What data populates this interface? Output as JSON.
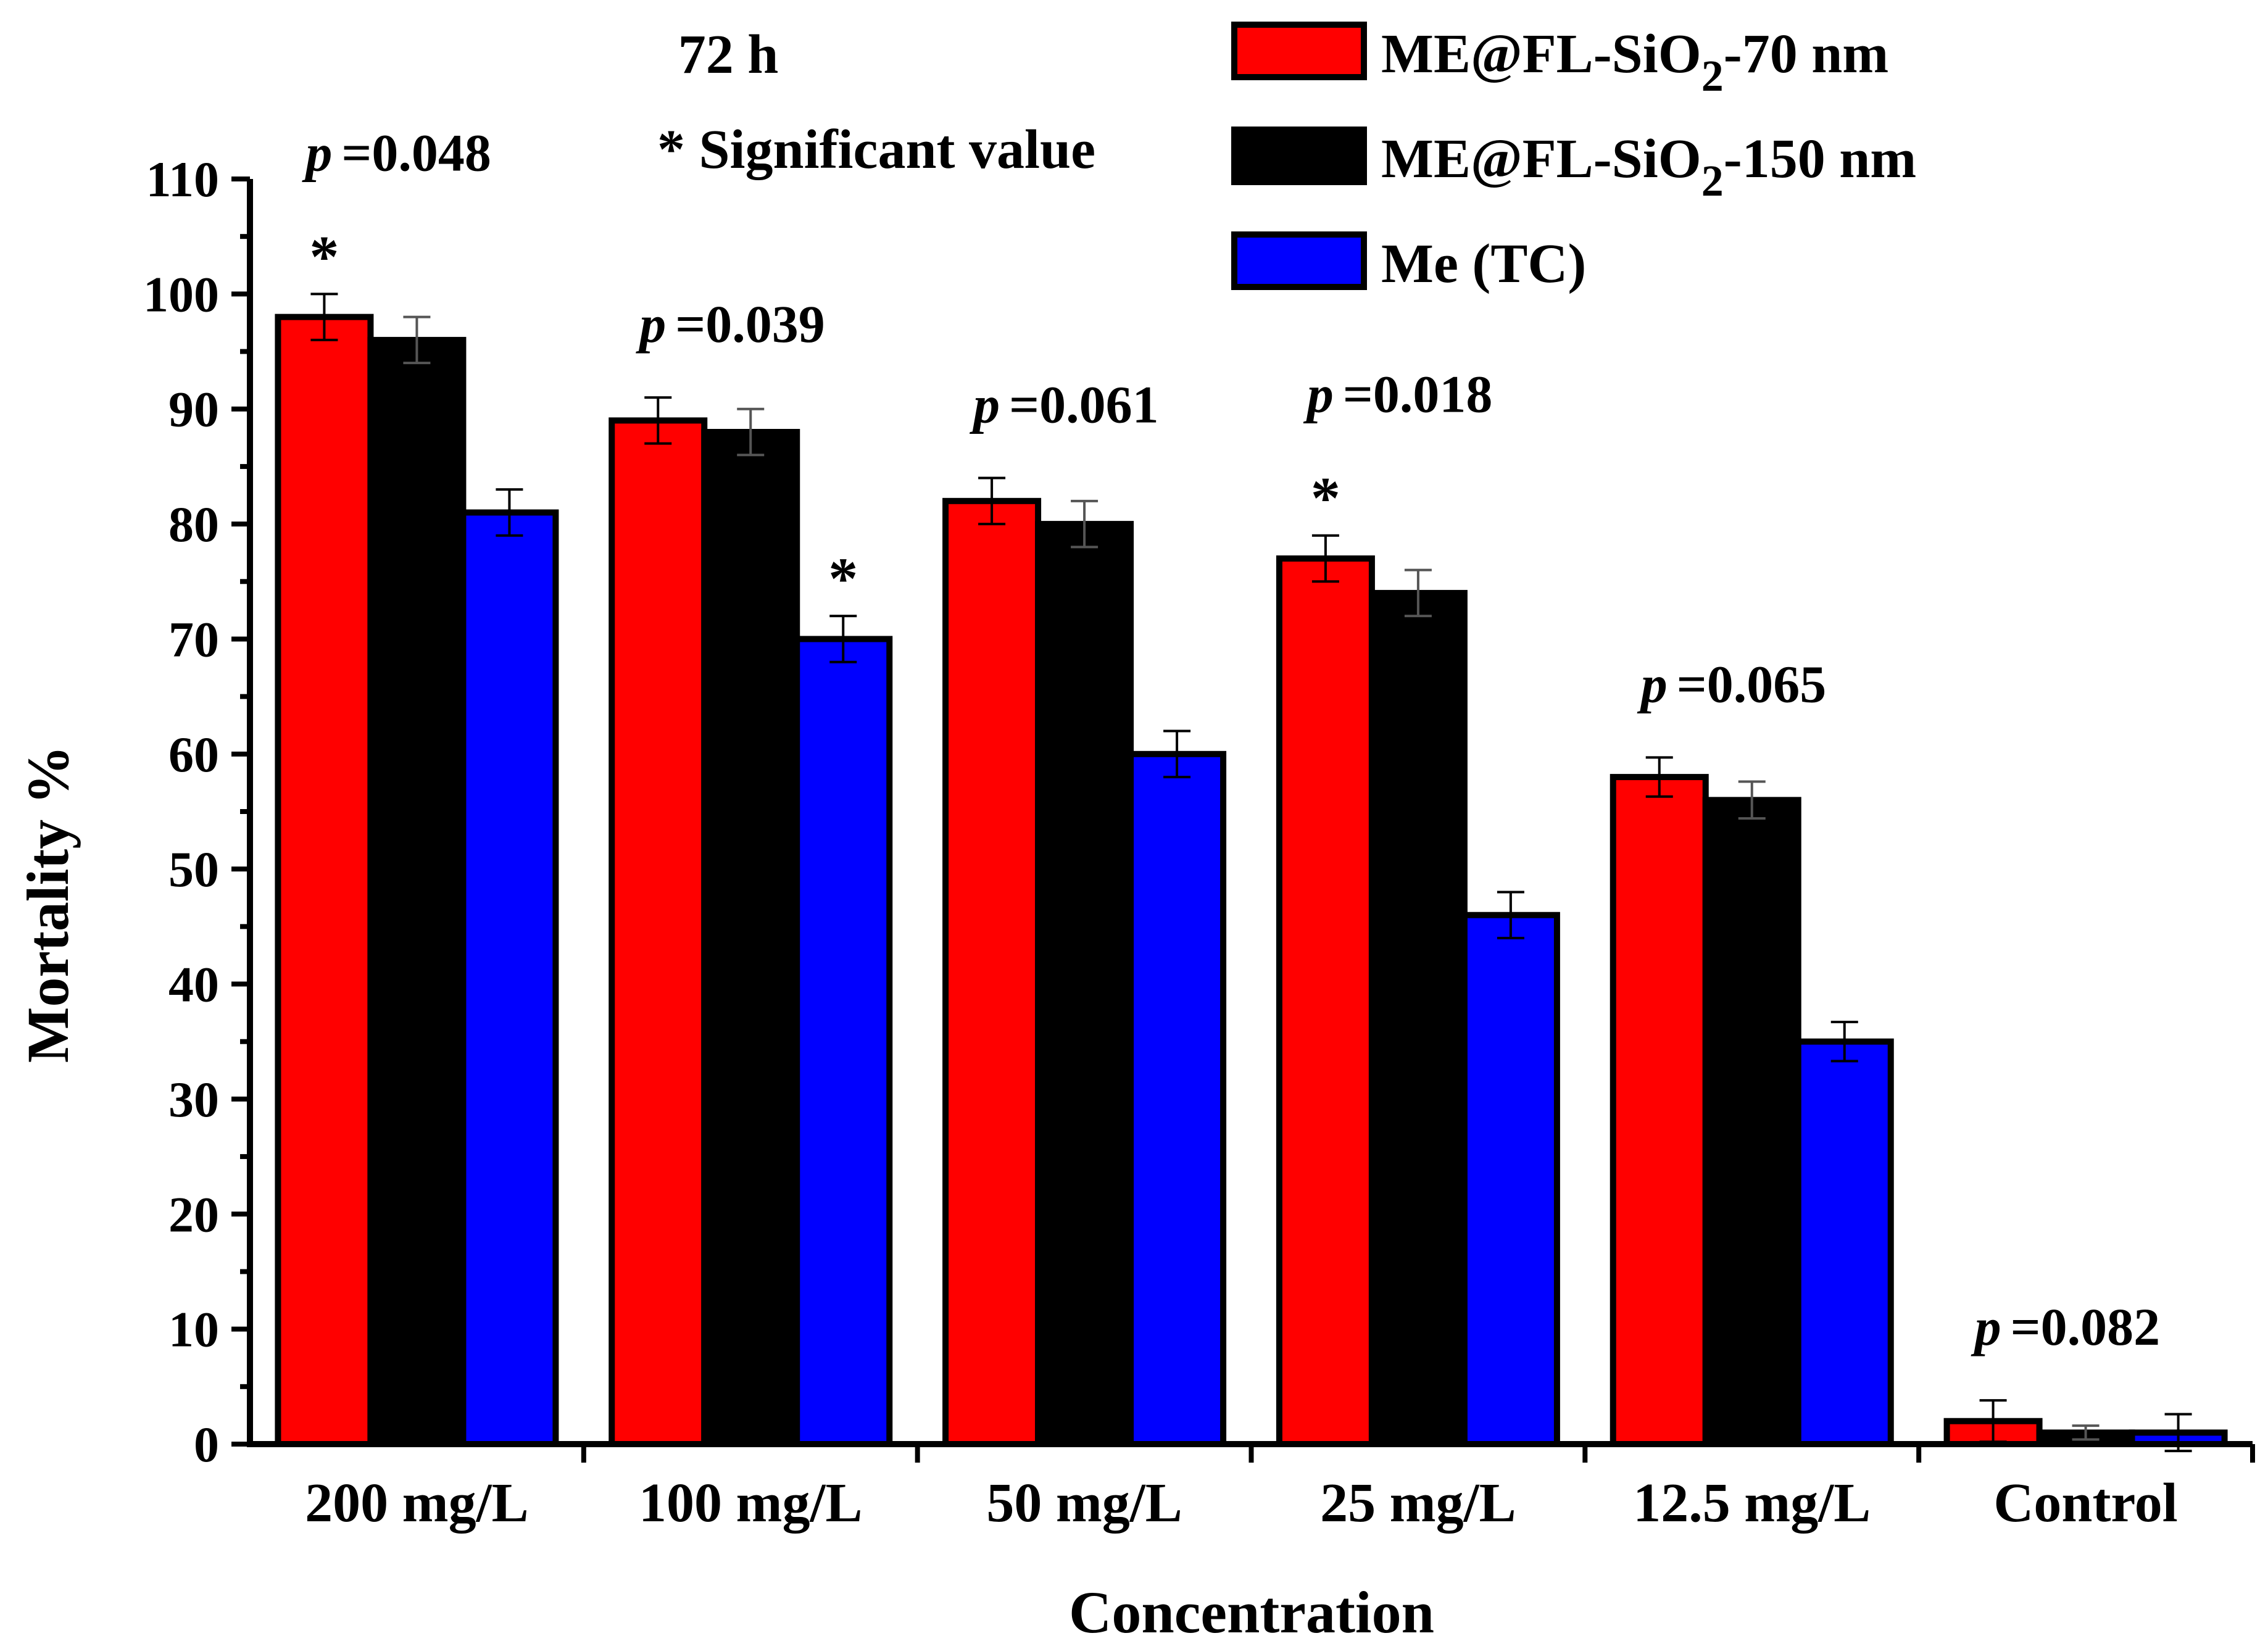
{
  "chart_data": {
    "type": "bar",
    "title": "72 h",
    "note": "* Significant value",
    "xlabel": "Concentration",
    "ylabel": "Mortality %",
    "ylim": [
      0,
      110
    ],
    "yticks": [
      "0",
      "10",
      "20",
      "30",
      "40",
      "50",
      "60",
      "70",
      "80",
      "90",
      "100",
      "110"
    ],
    "grid": false,
    "legend_position": "top-right",
    "categories": [
      "200 mg/L",
      "100 mg/L",
      "50 mg/L",
      "25 mg/L",
      "12.5 mg/L",
      "Control"
    ],
    "series": [
      {
        "name": "ME@FL-SiO2-70 nm",
        "legend_parts": [
          "ME@FL-SiO",
          "2",
          "-70 nm"
        ],
        "color": "#ff0000",
        "values": [
          98,
          89,
          82,
          77,
          58,
          2
        ],
        "errors": [
          2,
          2,
          2,
          2,
          1.7,
          1.8
        ]
      },
      {
        "name": "ME@FL-SiO2-150 nm",
        "legend_parts": [
          "ME@FL-SiO",
          "2",
          "-150 nm"
        ],
        "color": "#000000",
        "values": [
          96,
          88,
          80,
          74,
          56,
          1
        ],
        "errors": [
          2,
          2,
          2,
          2,
          1.6,
          0.6
        ]
      },
      {
        "name": "Me (TC)",
        "legend_parts": [
          "Me (TC)",
          "",
          ""
        ],
        "color": "#0000ff",
        "values": [
          81,
          70,
          60,
          46,
          35,
          1
        ],
        "errors": [
          2,
          2,
          2,
          2,
          1.7,
          1.6
        ]
      }
    ],
    "annotations": [
      {
        "category": 0,
        "p_label": "p",
        "p_value": "=0.048",
        "star": "*",
        "star_series": 0
      },
      {
        "category": 1,
        "p_label": "p",
        "p_value": "=0.039",
        "star": "*",
        "star_series": 2
      },
      {
        "category": 2,
        "p_label": "p",
        "p_value": "=0.061",
        "star": "",
        "star_series": null
      },
      {
        "category": 3,
        "p_label": "p",
        "p_value": "=0.018",
        "star": "*",
        "star_series": 0
      },
      {
        "category": 4,
        "p_label": "p",
        "p_value": "=0.065",
        "star": "",
        "star_series": null
      },
      {
        "category": 5,
        "p_label": "p",
        "p_value": "=0.082",
        "star": "",
        "star_series": null
      }
    ]
  }
}
